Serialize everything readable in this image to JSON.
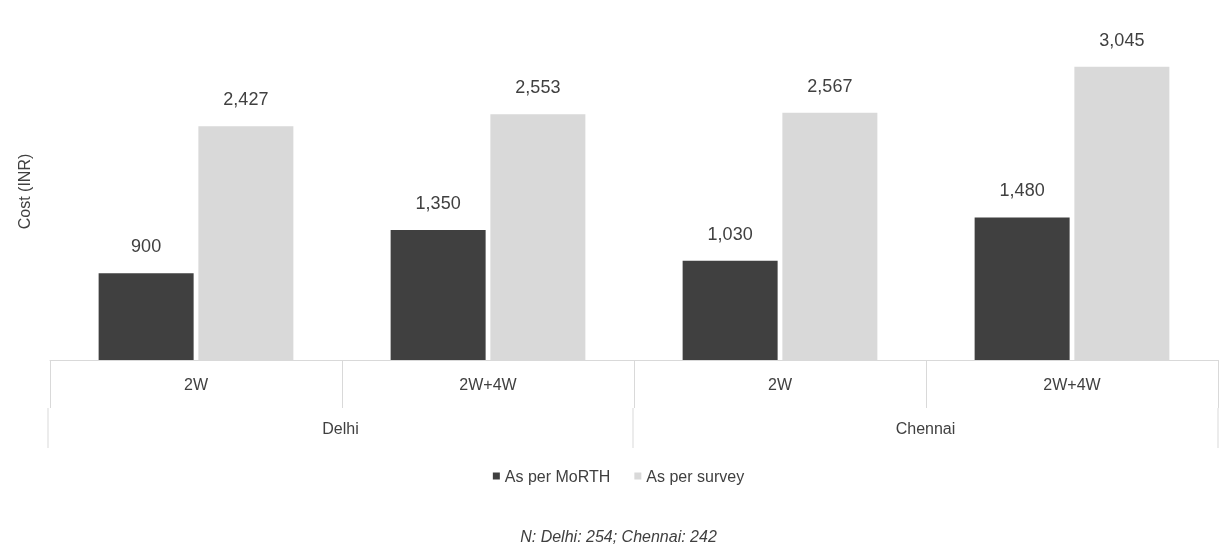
{
  "chart_data": {
    "type": "bar",
    "ylabel": "Cost (INR)",
    "categories": [
      "2W",
      "2W+4W",
      "2W",
      "2W+4W"
    ],
    "series": [
      {
        "name": "As per MoRTH",
        "color": "#404040",
        "values": [
          900,
          1350,
          1030,
          1480
        ],
        "value_labels": [
          "900",
          "1,350",
          "1,030",
          "1,480"
        ]
      },
      {
        "name": "As per survey",
        "color": "#d9d9d9",
        "values": [
          2427,
          2553,
          2567,
          3045
        ],
        "value_labels": [
          "2,427",
          "2,553",
          "2,567",
          "3,045"
        ]
      }
    ],
    "annotations": [
      "Delhi",
      "Chennai",
      "N: Delhi: 254; Chennai: 242"
    ],
    "legend": "bottom",
    "grid": false
  }
}
